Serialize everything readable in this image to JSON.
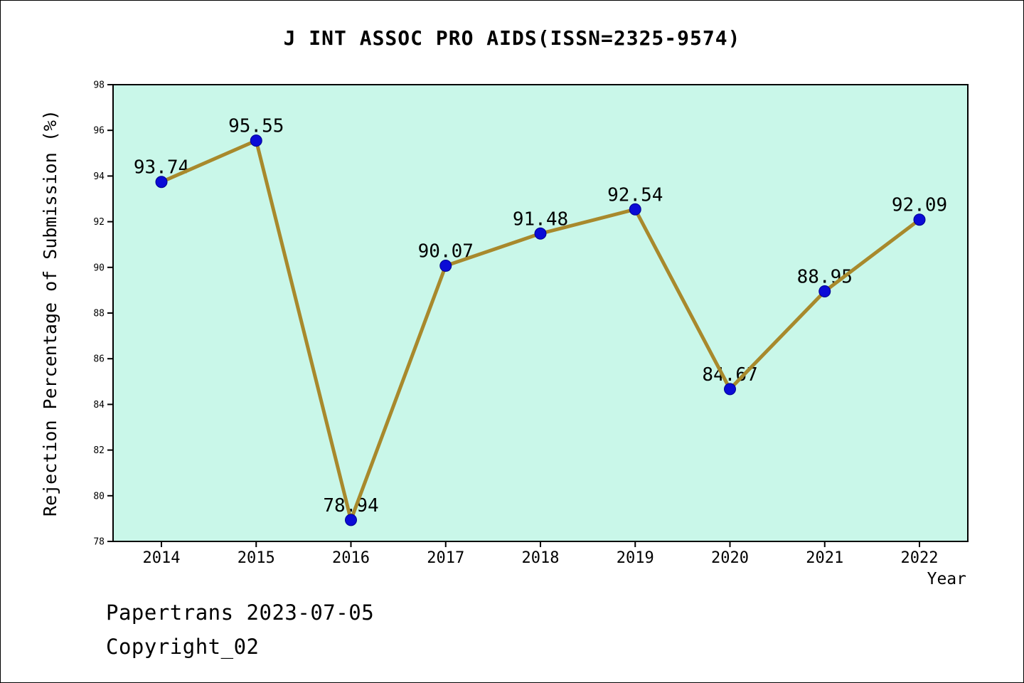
{
  "title": "J INT ASSOC PRO AIDS(ISSN=2325-9574)",
  "footer": {
    "line1": "Papertrans 2023-07-05",
    "line2": "Copyright_02"
  },
  "chart_data": {
    "type": "line",
    "title": "J INT ASSOC PRO AIDS(ISSN=2325-9574)",
    "categories": [
      "2014",
      "2015",
      "2016",
      "2017",
      "2018",
      "2019",
      "2020",
      "2021",
      "2022"
    ],
    "values": [
      93.74,
      95.55,
      78.94,
      90.07,
      91.48,
      92.54,
      84.67,
      88.95,
      92.09
    ],
    "xlabel": "Year",
    "ylabel": "Rejection Percentage of Submission (%)",
    "ylim": [
      78,
      98
    ],
    "ytick_step": 2,
    "grid": false,
    "legend": false,
    "colors": {
      "line": "#a8892c",
      "marker": "#0b0bd6",
      "marker_edge": "#000090",
      "plot_bg": "#c9f7e9",
      "axis": "#000000",
      "text": "#000000"
    }
  }
}
